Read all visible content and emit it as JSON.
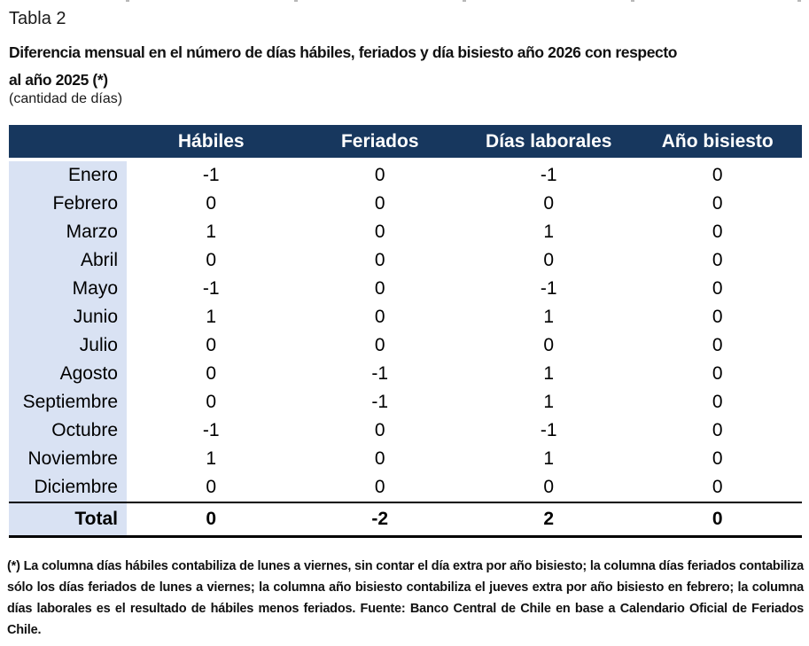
{
  "header": {
    "table_number": "Tabla 2",
    "title": "Diferencia mensual en el número de días hábiles, feriados y día bisiesto año 2026 con respecto\nal año 2025 (*)",
    "subtitle": "(cantidad de días)"
  },
  "table": {
    "columns": [
      "Hábiles",
      "Feriados",
      "Días laborales",
      "Año bisiesto"
    ],
    "rows": [
      {
        "label": "Enero",
        "values": [
          -1,
          0,
          -1,
          0
        ]
      },
      {
        "label": "Febrero",
        "values": [
          0,
          0,
          0,
          0
        ]
      },
      {
        "label": "Marzo",
        "values": [
          1,
          0,
          1,
          0
        ]
      },
      {
        "label": "Abril",
        "values": [
          0,
          0,
          0,
          0
        ]
      },
      {
        "label": "Mayo",
        "values": [
          -1,
          0,
          -1,
          0
        ]
      },
      {
        "label": "Junio",
        "values": [
          1,
          0,
          1,
          0
        ]
      },
      {
        "label": "Julio",
        "values": [
          0,
          0,
          0,
          0
        ]
      },
      {
        "label": "Agosto",
        "values": [
          0,
          -1,
          1,
          0
        ]
      },
      {
        "label": "Septiembre",
        "values": [
          0,
          -1,
          1,
          0
        ]
      },
      {
        "label": "Octubre",
        "values": [
          -1,
          0,
          -1,
          0
        ]
      },
      {
        "label": "Noviembre",
        "values": [
          1,
          0,
          1,
          0
        ]
      },
      {
        "label": "Diciembre",
        "values": [
          0,
          0,
          0,
          0
        ]
      }
    ],
    "total": {
      "label": "Total",
      "values": [
        0,
        -2,
        2,
        0
      ]
    }
  },
  "footnote": "(*) La columna días hábiles contabiliza de lunes a viernes, sin contar el día extra por año bisiesto; la columna días feriados contabiliza sólo los días feriados de lunes a viernes; la columna año bisiesto contabiliza el jueves extra por año bisiesto en febrero; la columna días laborales es el resultado de hábiles menos feriados. Fuente: Banco Central de Chile en base a Calendario Oficial de Feriados Chile.",
  "colors": {
    "header_bg": "#17375E",
    "label_bg": "#D9E2F3",
    "header_text": "#FFFFFF"
  }
}
